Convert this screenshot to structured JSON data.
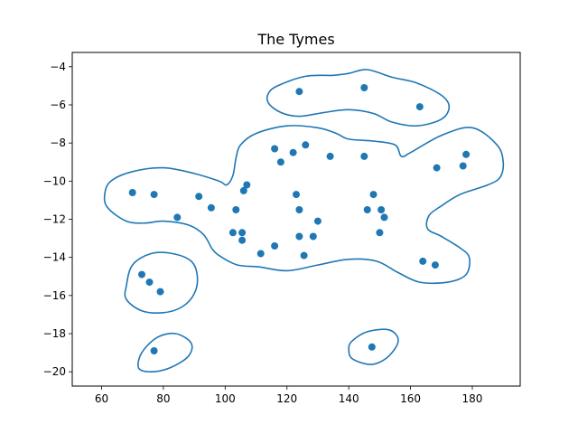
{
  "chart_data": {
    "type": "scatter",
    "title": "The Tymes",
    "xlabel": "",
    "ylabel": "",
    "xlim": [
      50.5,
      195.5
    ],
    "ylim": [
      -20.75,
      -3.25
    ],
    "xticks": [
      60,
      80,
      100,
      120,
      140,
      160,
      180
    ],
    "yticks": [
      -20,
      -18,
      -16,
      -14,
      -12,
      -10,
      -8,
      -6,
      -4
    ],
    "xtick_labels": [
      "60",
      "80",
      "100",
      "120",
      "140",
      "160",
      "180"
    ],
    "ytick_labels": [
      "−20",
      "−18",
      "−16",
      "−14",
      "−12",
      "−10",
      "−8",
      "−6",
      "−4"
    ],
    "grid": false,
    "point_color": "#1f77b4",
    "contour_color": "#1f77b4",
    "points": [
      {
        "x": 124,
        "y": -5.3
      },
      {
        "x": 145,
        "y": -5.1
      },
      {
        "x": 163,
        "y": -6.1
      },
      {
        "x": 116,
        "y": -8.3
      },
      {
        "x": 122,
        "y": -8.5
      },
      {
        "x": 126,
        "y": -8.1
      },
      {
        "x": 118,
        "y": -9.0
      },
      {
        "x": 134,
        "y": -8.7
      },
      {
        "x": 145,
        "y": -8.7
      },
      {
        "x": 178,
        "y": -8.6
      },
      {
        "x": 168.5,
        "y": -9.3
      },
      {
        "x": 177,
        "y": -9.2
      },
      {
        "x": 70,
        "y": -10.6
      },
      {
        "x": 77,
        "y": -10.7
      },
      {
        "x": 91.5,
        "y": -10.8
      },
      {
        "x": 95.5,
        "y": -11.4
      },
      {
        "x": 84.5,
        "y": -11.9
      },
      {
        "x": 107,
        "y": -10.2
      },
      {
        "x": 106,
        "y": -10.5
      },
      {
        "x": 103.5,
        "y": -11.5
      },
      {
        "x": 123,
        "y": -10.7
      },
      {
        "x": 124,
        "y": -11.5
      },
      {
        "x": 148,
        "y": -10.7
      },
      {
        "x": 146,
        "y": -11.5
      },
      {
        "x": 150.5,
        "y": -11.5
      },
      {
        "x": 151.5,
        "y": -11.9
      },
      {
        "x": 130,
        "y": -12.1
      },
      {
        "x": 102.5,
        "y": -12.7
      },
      {
        "x": 105.5,
        "y": -12.7
      },
      {
        "x": 105.5,
        "y": -13.1
      },
      {
        "x": 124,
        "y": -12.9
      },
      {
        "x": 128.5,
        "y": -12.9
      },
      {
        "x": 116,
        "y": -13.4
      },
      {
        "x": 111.5,
        "y": -13.8
      },
      {
        "x": 125.5,
        "y": -13.9
      },
      {
        "x": 150,
        "y": -12.7
      },
      {
        "x": 164,
        "y": -14.2
      },
      {
        "x": 168,
        "y": -14.4
      },
      {
        "x": 73,
        "y": -14.9
      },
      {
        "x": 75.5,
        "y": -15.3
      },
      {
        "x": 79,
        "y": -15.8
      },
      {
        "x": 77,
        "y": -18.9
      },
      {
        "x": 147.5,
        "y": -18.7
      }
    ],
    "contours": [
      [
        [
          117,
          -5.0
        ],
        [
          126,
          -4.5
        ],
        [
          135,
          -4.45
        ],
        [
          140,
          -4.35
        ],
        [
          146,
          -4.15
        ],
        [
          154,
          -4.55
        ],
        [
          162,
          -4.85
        ],
        [
          170,
          -5.5
        ],
        [
          172.5,
          -6.1
        ],
        [
          170,
          -6.75
        ],
        [
          162,
          -7.1
        ],
        [
          154,
          -6.9
        ],
        [
          148,
          -6.45
        ],
        [
          140,
          -6.25
        ],
        [
          132,
          -6.4
        ],
        [
          124,
          -6.6
        ],
        [
          118,
          -6.4
        ],
        [
          114,
          -5.9
        ],
        [
          114,
          -5.4
        ],
        [
          117,
          -5.0
        ]
      ],
      [
        [
          100.5,
          -10.2
        ],
        [
          102.5,
          -9.7
        ],
        [
          103.5,
          -8.8
        ],
        [
          105,
          -8.1
        ],
        [
          110,
          -7.5
        ],
        [
          120,
          -7.1
        ],
        [
          130,
          -7.2
        ],
        [
          136,
          -7.5
        ],
        [
          140,
          -7.8
        ],
        [
          148,
          -7.9
        ],
        [
          155,
          -8.1
        ],
        [
          157,
          -8.7
        ],
        [
          160,
          -8.5
        ],
        [
          170,
          -7.6
        ],
        [
          180,
          -7.2
        ],
        [
          188,
          -8.1
        ],
        [
          190,
          -9.0
        ],
        [
          189,
          -9.8
        ],
        [
          185,
          -10.2
        ],
        [
          176,
          -10.7
        ],
        [
          170,
          -11.3
        ],
        [
          166,
          -11.8
        ],
        [
          165.5,
          -12.5
        ],
        [
          170,
          -12.9
        ],
        [
          176,
          -13.5
        ],
        [
          179,
          -14.0
        ],
        [
          178,
          -14.9
        ],
        [
          172,
          -15.3
        ],
        [
          163,
          -15.3
        ],
        [
          156,
          -14.8
        ],
        [
          149,
          -14.2
        ],
        [
          140,
          -14.1
        ],
        [
          130,
          -14.4
        ],
        [
          120,
          -14.7
        ],
        [
          111,
          -14.5
        ],
        [
          104,
          -14.4
        ],
        [
          99,
          -14.0
        ],
        [
          96,
          -13.6
        ],
        [
          93,
          -12.8
        ],
        [
          88,
          -12.3
        ],
        [
          80,
          -12.1
        ],
        [
          74,
          -12.2
        ],
        [
          68,
          -12.1
        ],
        [
          62,
          -11.4
        ],
        [
          61,
          -10.7
        ],
        [
          63,
          -10.0
        ],
        [
          70,
          -9.5
        ],
        [
          80,
          -9.3
        ],
        [
          90,
          -9.6
        ],
        [
          98,
          -10.0
        ],
        [
          100.5,
          -10.2
        ]
      ],
      [
        [
          68,
          -15.5
        ],
        [
          70,
          -14.4
        ],
        [
          76,
          -13.8
        ],
        [
          83,
          -13.8
        ],
        [
          89,
          -14.2
        ],
        [
          91,
          -15.0
        ],
        [
          90,
          -15.9
        ],
        [
          86,
          -16.6
        ],
        [
          80,
          -16.9
        ],
        [
          73,
          -16.8
        ],
        [
          68,
          -16.2
        ],
        [
          68,
          -15.5
        ]
      ],
      [
        [
          72,
          -19.8
        ],
        [
          73,
          -19.0
        ],
        [
          78,
          -18.2
        ],
        [
          84,
          -18.0
        ],
        [
          89,
          -18.5
        ],
        [
          88,
          -19.2
        ],
        [
          82,
          -19.8
        ],
        [
          76,
          -20.0
        ],
        [
          72,
          -19.8
        ]
      ],
      [
        [
          141,
          -19.3
        ],
        [
          140,
          -18.8
        ],
        [
          141,
          -18.4
        ],
        [
          146,
          -17.9
        ],
        [
          153,
          -17.8
        ],
        [
          156,
          -18.3
        ],
        [
          154,
          -19.0
        ],
        [
          150,
          -19.5
        ],
        [
          146,
          -19.6
        ],
        [
          141,
          -19.3
        ]
      ]
    ]
  }
}
